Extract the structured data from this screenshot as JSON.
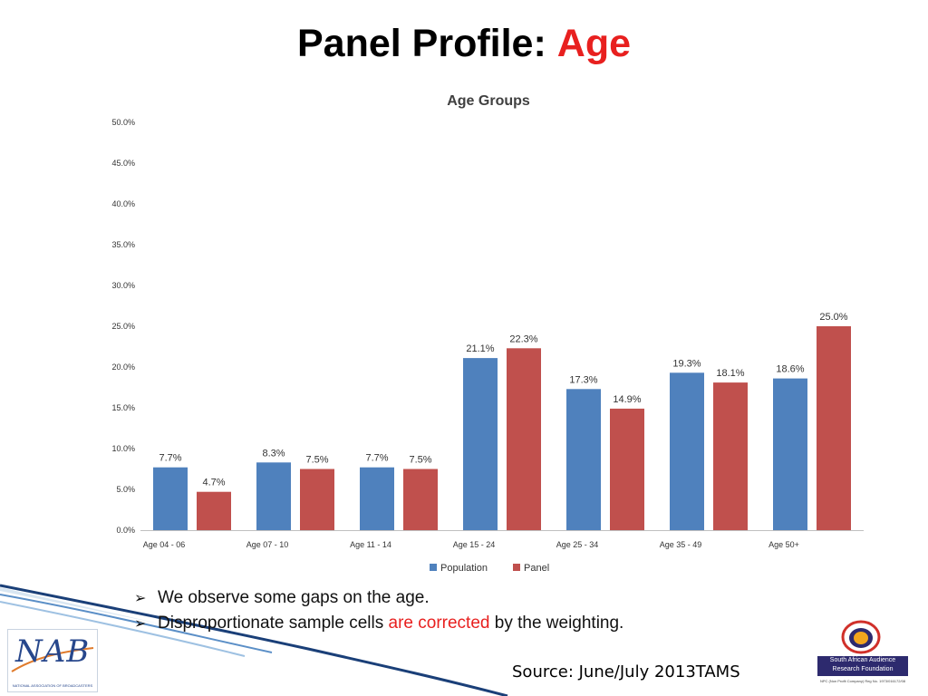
{
  "slide": {
    "title_main": "Panel Profile:",
    "title_accent": "Age",
    "bullets": [
      {
        "text": "We observe some gaps on the age."
      },
      {
        "pre": "Disproportionate sample cells ",
        "highlight": "are corrected",
        "post": " by the weighting."
      }
    ],
    "source": "Source: June/July 2013TAMS",
    "nab_logo_text": "NAB",
    "nab_logo_subtitle": "NATIONAL ASSOCIATION OF BROADCASTERS",
    "saarf_name": "South African Audience Research Foundation",
    "saarf_registration": "NPC (Non Profit Company) Reg No. 1973/016172/08"
  },
  "chart_data": {
    "type": "bar",
    "title": "Age Groups",
    "categories": [
      "Age 04 - 06",
      "Age 07 - 10",
      "Age 11 - 14",
      "Age 15 - 24",
      "Age 25 - 34",
      "Age 35 - 49",
      "Age 50+"
    ],
    "series": [
      {
        "name": "Population",
        "color": "#4f81bd",
        "values": [
          7.7,
          8.3,
          7.7,
          21.1,
          17.3,
          19.3,
          18.6
        ]
      },
      {
        "name": "Panel",
        "color": "#c0504d",
        "values": [
          4.7,
          7.5,
          7.5,
          22.3,
          14.9,
          18.1,
          25.0
        ]
      }
    ],
    "ylim": [
      0,
      50
    ],
    "yticks": [
      0,
      5,
      10,
      15,
      20,
      25,
      30,
      35,
      40,
      45,
      50
    ],
    "ytick_labels": [
      "0.0%",
      "5.0%",
      "10.0%",
      "15.0%",
      "20.0%",
      "25.0%",
      "30.0%",
      "35.0%",
      "40.0%",
      "45.0%",
      "50.0%"
    ],
    "data_labels": [
      [
        "7.7%",
        "8.3%",
        "7.7%",
        "21.1%",
        "17.3%",
        "19.3%",
        "18.6%"
      ],
      [
        "4.7%",
        "7.5%",
        "7.5%",
        "22.3%",
        "14.9%",
        "18.1%",
        "25.0%"
      ]
    ],
    "grid": false,
    "legend_position": "bottom"
  }
}
